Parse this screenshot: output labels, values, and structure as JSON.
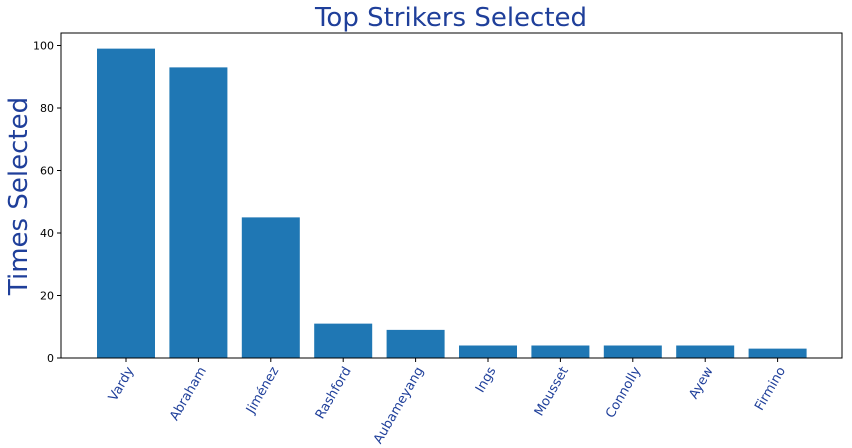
{
  "chart_data": {
    "type": "bar",
    "title": "Top Strikers Selected",
    "ylabel": "Times Selected",
    "xlabel": "",
    "categories": [
      "Vardy",
      "Abraham",
      "Jiménez",
      "Rashford",
      "Aubameyang",
      "Ings",
      "Mousset",
      "Connolly",
      "Ayew",
      "Firmino"
    ],
    "values": [
      99,
      93,
      45,
      11,
      9,
      4,
      4,
      4,
      4,
      3
    ],
    "ylim": [
      0,
      104
    ],
    "yticks": [
      0,
      20,
      40,
      60,
      80,
      100
    ],
    "grid": false,
    "bar_color": "#1f77b4",
    "label_color": "#1f3f9a"
  }
}
